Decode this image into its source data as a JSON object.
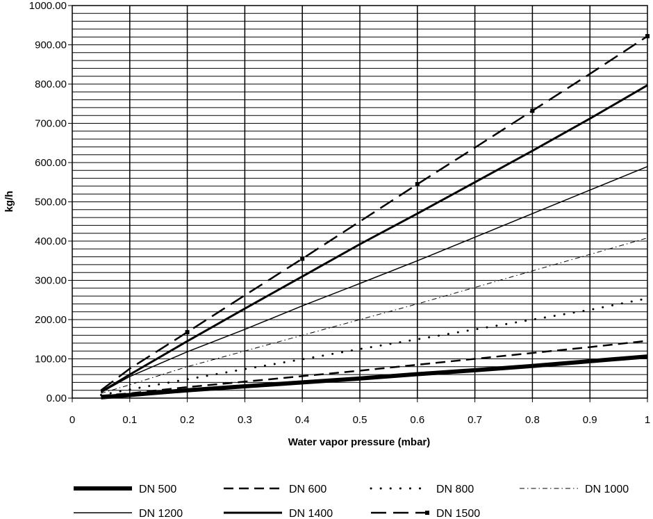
{
  "chart_data": {
    "type": "line",
    "title": "",
    "xlabel": "Water vapor pressure (mbar)",
    "ylabel": "kg/h",
    "xlim": [
      0,
      1
    ],
    "ylim": [
      0,
      1000
    ],
    "x_ticks": [
      "0",
      "0.1",
      "0.2",
      "0.3",
      "0.4",
      "0.5",
      "0.6",
      "0.7",
      "0.8",
      "0.9",
      "1"
    ],
    "y_ticks": [
      "0.00",
      "100.00",
      "200.00",
      "300.00",
      "400.00",
      "500.00",
      "600.00",
      "700.00",
      "800.00",
      "900.00",
      "1000.00"
    ],
    "grid": true,
    "legend_position": "bottom",
    "series": [
      {
        "name": "DN 500",
        "style": "thick-solid",
        "x": [
          0.05,
          0.1,
          0.2,
          0.3,
          0.4,
          0.5,
          0.6,
          0.7,
          0.8,
          0.9,
          1.0
        ],
        "values": [
          2,
          8,
          20,
          30,
          40,
          50,
          61,
          71,
          82,
          94,
          106
        ]
      },
      {
        "name": "DN 600",
        "style": "dashed",
        "x": [
          0.05,
          0.1,
          0.2,
          0.3,
          0.4,
          0.5,
          0.6,
          0.7,
          0.8,
          0.9,
          1.0
        ],
        "values": [
          6,
          12,
          28,
          42,
          56,
          70,
          85,
          100,
          115,
          130,
          146
        ]
      },
      {
        "name": "DN 800",
        "style": "dotted",
        "x": [
          0.05,
          0.1,
          0.2,
          0.3,
          0.4,
          0.5,
          0.6,
          0.7,
          0.8,
          0.9,
          1.0
        ],
        "values": [
          8,
          22,
          48,
          74,
          99,
          125,
          150,
          175,
          200,
          225,
          254
        ]
      },
      {
        "name": "DN 1000",
        "style": "dash-dot",
        "x": [
          0.05,
          0.1,
          0.2,
          0.3,
          0.4,
          0.5,
          0.6,
          0.7,
          0.8,
          0.9,
          1.0
        ],
        "values": [
          12,
          34,
          80,
          120,
          160,
          200,
          240,
          282,
          324,
          366,
          408
        ]
      },
      {
        "name": "DN 1200",
        "style": "thin-solid",
        "x": [
          0.05,
          0.1,
          0.2,
          0.3,
          0.4,
          0.5,
          0.6,
          0.7,
          0.8,
          0.9,
          1.0
        ],
        "values": [
          14,
          55,
          118,
          175,
          235,
          292,
          350,
          410,
          470,
          530,
          590
        ]
      },
      {
        "name": "DN 1400",
        "style": "solid",
        "x": [
          0.05,
          0.1,
          0.2,
          0.3,
          0.4,
          0.5,
          0.6,
          0.7,
          0.8,
          0.9,
          1.0
        ],
        "values": [
          16,
          60,
          145,
          228,
          310,
          392,
          470,
          550,
          630,
          712,
          797
        ]
      },
      {
        "name": "DN 1500",
        "style": "long-dash-marker",
        "x": [
          0.05,
          0.1,
          0.2,
          0.3,
          0.4,
          0.5,
          0.6,
          0.7,
          0.8,
          0.9,
          1.0
        ],
        "values": [
          20,
          75,
          168,
          262,
          355,
          450,
          545,
          638,
          732,
          826,
          922
        ]
      }
    ]
  }
}
